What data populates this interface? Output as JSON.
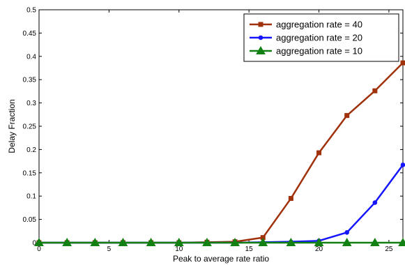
{
  "chart_data": {
    "type": "line",
    "xlabel": "Peak to average rate ratio",
    "ylabel": "Delay Fraction",
    "xlim": [
      0,
      26
    ],
    "ylim": [
      0,
      0.5
    ],
    "xticks": [
      0,
      5,
      10,
      15,
      20,
      25
    ],
    "yticks": [
      0,
      0.05,
      0.1,
      0.15,
      0.2,
      0.25,
      0.3,
      0.35,
      0.4,
      0.45,
      0.5
    ],
    "ytick_labels": [
      "0",
      "0.05",
      "0.1",
      "0.15",
      "0.2",
      "0.25",
      "0.3",
      "0.35",
      "0.4",
      "0.45",
      "0.5"
    ],
    "grid": false,
    "legend_position": "top-right",
    "x": [
      0,
      2,
      4,
      6,
      8,
      10,
      12,
      14,
      16,
      18,
      20,
      22,
      24,
      26
    ],
    "series": [
      {
        "name": "aggregation rate = 40",
        "color": "#a0310b",
        "marker": "square",
        "values": [
          0,
          0,
          0,
          0,
          0,
          0,
          0.001,
          0.002,
          0.011,
          0.095,
          0.193,
          0.273,
          0.326,
          0.386
        ]
      },
      {
        "name": "aggregation rate = 20",
        "color": "#1515ff",
        "marker": "circle",
        "values": [
          0,
          0,
          0,
          0,
          0,
          0,
          0,
          0,
          0.001,
          0.002,
          0.004,
          0.022,
          0.086,
          0.167
        ]
      },
      {
        "name": "aggregation rate = 10",
        "color": "#128012",
        "marker": "triangle",
        "values": [
          0,
          0,
          0,
          0,
          0,
          0,
          0,
          0,
          0,
          0,
          0,
          0,
          0,
          0
        ]
      }
    ]
  }
}
